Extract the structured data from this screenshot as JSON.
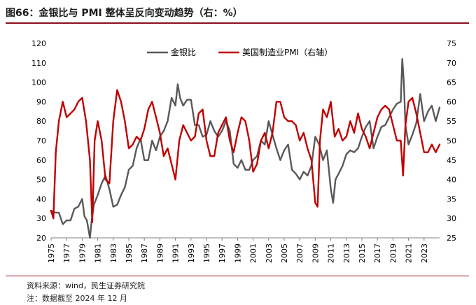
{
  "title": "图66：金银比与 PMI 整体呈反向变动趋势（右：%）",
  "footer": {
    "source": "资料来源：wind，民生证券研究院",
    "note": "注：数据截至 2024 年 12 月"
  },
  "colors": {
    "gold_silver": "#595959",
    "pmi": "#c00000",
    "accent": "#8b0f1a"
  },
  "chart_data": {
    "type": "line",
    "title": "金银比与 PMI 整体呈反向变动趋势（右：%）",
    "x_range": [
      1975,
      2025
    ],
    "x_ticks": [
      1975,
      1977,
      1979,
      1981,
      1983,
      1985,
      1987,
      1989,
      1991,
      1993,
      1995,
      1997,
      1999,
      2001,
      2003,
      2005,
      2007,
      2009,
      2011,
      2013,
      2015,
      2017,
      2019,
      2021,
      2023
    ],
    "y_left": {
      "min": 20,
      "max": 120,
      "ticks": [
        20,
        30,
        40,
        50,
        60,
        70,
        80,
        90,
        100,
        110,
        120
      ]
    },
    "y_right": {
      "min": 25,
      "max": 75,
      "ticks": [
        25,
        30,
        35,
        40,
        45,
        50,
        55,
        60,
        65,
        70,
        75
      ]
    },
    "legend": [
      {
        "name": "金银比",
        "axis": "left"
      },
      {
        "name": "美国制造业PMI（右轴）",
        "axis": "right"
      }
    ],
    "legend_position": "top-right",
    "series": [
      {
        "name": "金银比",
        "axis": "left",
        "points": [
          [
            1975.0,
            34
          ],
          [
            1975.5,
            33
          ],
          [
            1976.0,
            33
          ],
          [
            1976.5,
            27
          ],
          [
            1977.0,
            29
          ],
          [
            1977.5,
            29
          ],
          [
            1978.0,
            35
          ],
          [
            1978.5,
            36
          ],
          [
            1979.0,
            40
          ],
          [
            1979.3,
            31
          ],
          [
            1979.6,
            29
          ],
          [
            1980.0,
            20
          ],
          [
            1980.2,
            28
          ],
          [
            1980.5,
            37
          ],
          [
            1981.0,
            42
          ],
          [
            1981.5,
            48
          ],
          [
            1982.0,
            52
          ],
          [
            1982.5,
            45
          ],
          [
            1983.0,
            36
          ],
          [
            1983.5,
            37
          ],
          [
            1984.0,
            42
          ],
          [
            1984.5,
            46
          ],
          [
            1985.0,
            55
          ],
          [
            1985.5,
            57
          ],
          [
            1986.0,
            66
          ],
          [
            1986.5,
            71
          ],
          [
            1987.0,
            60
          ],
          [
            1987.5,
            60
          ],
          [
            1988.0,
            70
          ],
          [
            1988.5,
            65
          ],
          [
            1989.0,
            72
          ],
          [
            1989.5,
            75
          ],
          [
            1990.0,
            80
          ],
          [
            1990.5,
            92
          ],
          [
            1991.0,
            88
          ],
          [
            1991.3,
            99
          ],
          [
            1991.6,
            92
          ],
          [
            1992.0,
            88
          ],
          [
            1992.5,
            91
          ],
          [
            1993.0,
            91
          ],
          [
            1993.5,
            78
          ],
          [
            1994.0,
            78
          ],
          [
            1994.5,
            72
          ],
          [
            1995.0,
            73
          ],
          [
            1995.5,
            80
          ],
          [
            1996.0,
            75
          ],
          [
            1996.5,
            72
          ],
          [
            1997.0,
            75
          ],
          [
            1997.5,
            80
          ],
          [
            1998.0,
            75
          ],
          [
            1998.5,
            58
          ],
          [
            1999.0,
            56
          ],
          [
            1999.5,
            60
          ],
          [
            2000.0,
            55
          ],
          [
            2000.5,
            55
          ],
          [
            2001.0,
            60
          ],
          [
            2001.5,
            62
          ],
          [
            2002.0,
            70
          ],
          [
            2002.5,
            68
          ],
          [
            2003.0,
            80
          ],
          [
            2003.5,
            73
          ],
          [
            2004.0,
            66
          ],
          [
            2004.5,
            60
          ],
          [
            2005.0,
            65
          ],
          [
            2005.5,
            68
          ],
          [
            2006.0,
            55
          ],
          [
            2006.5,
            53
          ],
          [
            2007.0,
            50
          ],
          [
            2007.5,
            54
          ],
          [
            2008.0,
            52
          ],
          [
            2008.5,
            57
          ],
          [
            2009.0,
            72
          ],
          [
            2009.5,
            68
          ],
          [
            2010.0,
            60
          ],
          [
            2010.5,
            65
          ],
          [
            2011.0,
            45
          ],
          [
            2011.3,
            38
          ],
          [
            2011.6,
            50
          ],
          [
            2012.0,
            53
          ],
          [
            2012.5,
            57
          ],
          [
            2013.0,
            63
          ],
          [
            2013.5,
            65
          ],
          [
            2014.0,
            64
          ],
          [
            2014.5,
            66
          ],
          [
            2015.0,
            72
          ],
          [
            2015.5,
            77
          ],
          [
            2016.0,
            80
          ],
          [
            2016.5,
            66
          ],
          [
            2017.0,
            72
          ],
          [
            2017.5,
            77
          ],
          [
            2018.0,
            78
          ],
          [
            2018.5,
            82
          ],
          [
            2019.0,
            86
          ],
          [
            2019.5,
            89
          ],
          [
            2020.0,
            90
          ],
          [
            2020.2,
            112
          ],
          [
            2020.4,
            100
          ],
          [
            2020.6,
            78
          ],
          [
            2021.0,
            68
          ],
          [
            2021.5,
            73
          ],
          [
            2022.0,
            79
          ],
          [
            2022.5,
            94
          ],
          [
            2023.0,
            80
          ],
          [
            2023.5,
            85
          ],
          [
            2024.0,
            88
          ],
          [
            2024.5,
            80
          ],
          [
            2025.0,
            87
          ]
        ]
      },
      {
        "name": "美国制造业PMI（右轴）",
        "axis": "right",
        "points": [
          [
            1975.0,
            32
          ],
          [
            1975.3,
            30
          ],
          [
            1975.6,
            47
          ],
          [
            1976.0,
            55
          ],
          [
            1976.5,
            60
          ],
          [
            1977.0,
            56
          ],
          [
            1977.5,
            57
          ],
          [
            1978.0,
            58
          ],
          [
            1978.5,
            60
          ],
          [
            1979.0,
            61
          ],
          [
            1979.5,
            55
          ],
          [
            1980.0,
            45
          ],
          [
            1980.3,
            29
          ],
          [
            1980.6,
            50
          ],
          [
            1981.0,
            55
          ],
          [
            1981.5,
            50
          ],
          [
            1982.0,
            40
          ],
          [
            1982.5,
            39
          ],
          [
            1983.0,
            55
          ],
          [
            1983.5,
            63
          ],
          [
            1984.0,
            60
          ],
          [
            1984.5,
            55
          ],
          [
            1985.0,
            48
          ],
          [
            1985.5,
            49
          ],
          [
            1986.0,
            51
          ],
          [
            1986.5,
            50
          ],
          [
            1987.0,
            53
          ],
          [
            1987.5,
            58
          ],
          [
            1988.0,
            60
          ],
          [
            1988.5,
            56
          ],
          [
            1989.0,
            52
          ],
          [
            1989.5,
            46
          ],
          [
            1990.0,
            48
          ],
          [
            1990.5,
            44
          ],
          [
            1991.0,
            40
          ],
          [
            1991.5,
            50
          ],
          [
            1992.0,
            54
          ],
          [
            1992.5,
            52
          ],
          [
            1993.0,
            50
          ],
          [
            1993.5,
            51
          ],
          [
            1994.0,
            57
          ],
          [
            1994.5,
            58
          ],
          [
            1995.0,
            50
          ],
          [
            1995.5,
            46
          ],
          [
            1996.0,
            46
          ],
          [
            1996.5,
            52
          ],
          [
            1997.0,
            54
          ],
          [
            1997.5,
            56
          ],
          [
            1998.0,
            50
          ],
          [
            1998.5,
            47
          ],
          [
            1999.0,
            52
          ],
          [
            1999.5,
            56
          ],
          [
            2000.0,
            55
          ],
          [
            2000.5,
            50
          ],
          [
            2001.0,
            42
          ],
          [
            2001.5,
            44
          ],
          [
            2002.0,
            50
          ],
          [
            2002.5,
            52
          ],
          [
            2003.0,
            48
          ],
          [
            2003.5,
            52
          ],
          [
            2004.0,
            60
          ],
          [
            2004.5,
            60
          ],
          [
            2005.0,
            56
          ],
          [
            2005.5,
            55
          ],
          [
            2006.0,
            55
          ],
          [
            2006.5,
            54
          ],
          [
            2007.0,
            50
          ],
          [
            2007.5,
            52
          ],
          [
            2008.0,
            48
          ],
          [
            2008.5,
            45
          ],
          [
            2009.0,
            34
          ],
          [
            2009.3,
            33
          ],
          [
            2009.6,
            50
          ],
          [
            2010.0,
            58
          ],
          [
            2010.5,
            56
          ],
          [
            2011.0,
            60
          ],
          [
            2011.5,
            51
          ],
          [
            2012.0,
            53
          ],
          [
            2012.5,
            50
          ],
          [
            2013.0,
            51
          ],
          [
            2013.5,
            55
          ],
          [
            2014.0,
            52
          ],
          [
            2014.5,
            57
          ],
          [
            2015.0,
            53
          ],
          [
            2015.5,
            51
          ],
          [
            2016.0,
            48
          ],
          [
            2016.5,
            52
          ],
          [
            2017.0,
            56
          ],
          [
            2017.5,
            58
          ],
          [
            2018.0,
            59
          ],
          [
            2018.5,
            58
          ],
          [
            2019.0,
            54
          ],
          [
            2019.5,
            50
          ],
          [
            2020.0,
            50
          ],
          [
            2020.3,
            41
          ],
          [
            2020.6,
            54
          ],
          [
            2021.0,
            60
          ],
          [
            2021.5,
            61
          ],
          [
            2022.0,
            57
          ],
          [
            2022.5,
            52
          ],
          [
            2023.0,
            47
          ],
          [
            2023.5,
            47
          ],
          [
            2024.0,
            49
          ],
          [
            2024.5,
            47
          ],
          [
            2025.0,
            49
          ]
        ]
      }
    ]
  }
}
